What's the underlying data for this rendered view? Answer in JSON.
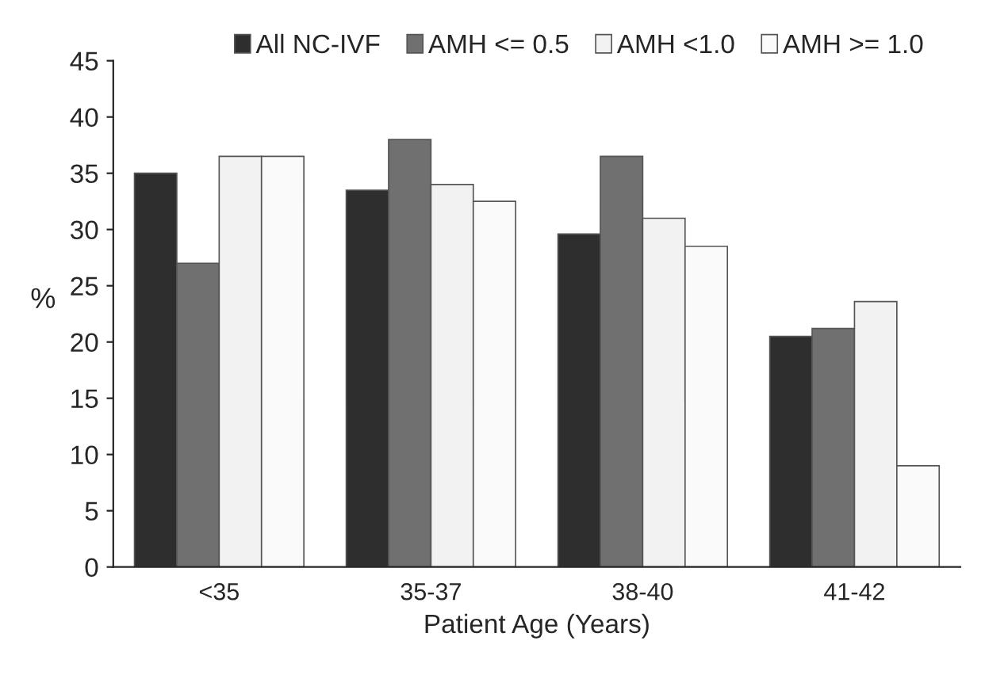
{
  "chart_data": {
    "type": "bar",
    "xlabel": "Patient Age (Years)",
    "ylabel": "%",
    "categories": [
      "<35",
      "35-37",
      "38-40",
      "41-42"
    ],
    "series": [
      {
        "name": "All NC-IVF",
        "color": "#2e2e2e",
        "values": [
          35,
          33.5,
          29.6,
          20.5
        ]
      },
      {
        "name": "AMH <= 0.5",
        "color": "#707070",
        "values": [
          27,
          38,
          36.5,
          21.2
        ]
      },
      {
        "name": "AMH <1.0",
        "color": "#f2f2f2",
        "values": [
          36.5,
          34,
          31,
          23.6
        ]
      },
      {
        "name": "AMH >= 1.0",
        "color": "#fafafa",
        "values": [
          36.5,
          32.5,
          28.5,
          9
        ]
      }
    ],
    "ylim": [
      0,
      45
    ],
    "yticks": [
      0,
      5,
      10,
      15,
      20,
      25,
      30,
      35,
      40,
      45
    ],
    "grid": false,
    "legend": "top"
  }
}
